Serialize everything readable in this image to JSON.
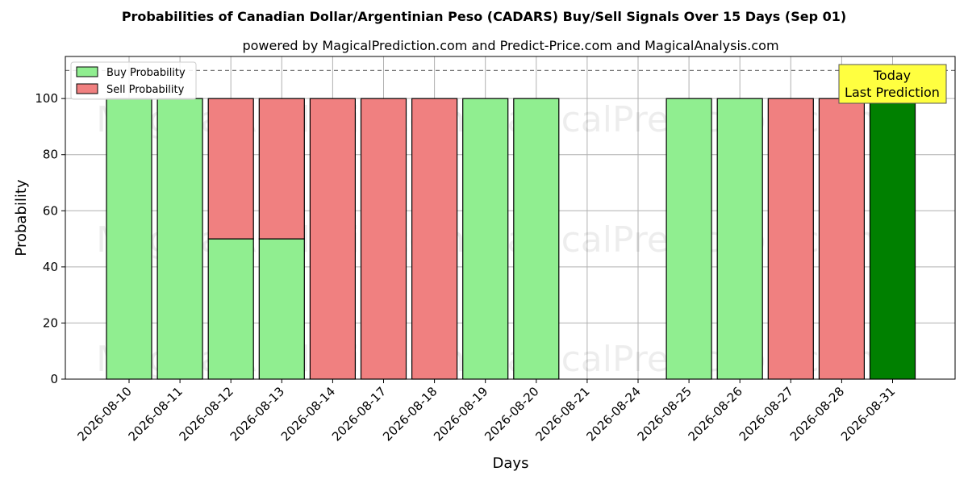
{
  "chart_data": {
    "type": "bar",
    "title": "Probabilities of Canadian Dollar/Argentinian Peso (CADARS) Buy/Sell Signals Over 15 Days (Sep 01)",
    "subtitle": "powered by MagicalPrediction.com and Predict-Price.com and MagicalAnalysis.com",
    "xlabel": "Days",
    "ylabel": "Probability",
    "ylim": [
      0,
      115
    ],
    "yticks": [
      0,
      20,
      40,
      60,
      80,
      100
    ],
    "grid": true,
    "legend_position": "top-left",
    "reference_line": 110,
    "categories": [
      "2026-08-10",
      "2026-08-11",
      "2026-08-12",
      "2026-08-13",
      "2026-08-14",
      "2026-08-17",
      "2026-08-18",
      "2026-08-19",
      "2026-08-20",
      "2026-08-21",
      "2026-08-24",
      "2026-08-25",
      "2026-08-26",
      "2026-08-27",
      "2026-08-28",
      "2026-08-31"
    ],
    "series": [
      {
        "name": "Buy Probability",
        "color": "#90ee90",
        "values": [
          100,
          100,
          50,
          50,
          0,
          0,
          0,
          100,
          100,
          0,
          0,
          100,
          100,
          0,
          0,
          100
        ]
      },
      {
        "name": "Sell Probability",
        "color": "#f08080",
        "values": [
          0,
          0,
          50,
          50,
          100,
          100,
          100,
          0,
          0,
          0,
          0,
          0,
          0,
          100,
          100,
          0
        ]
      }
    ],
    "highlight": {
      "index": 15,
      "color": "#008000"
    },
    "annotation": {
      "text_line1": "Today",
      "text_line2": "Last Prediction",
      "background": "#ffff40"
    },
    "watermarks": [
      "MagicalAnalysis.com",
      "MagicalPrediction.com"
    ]
  }
}
